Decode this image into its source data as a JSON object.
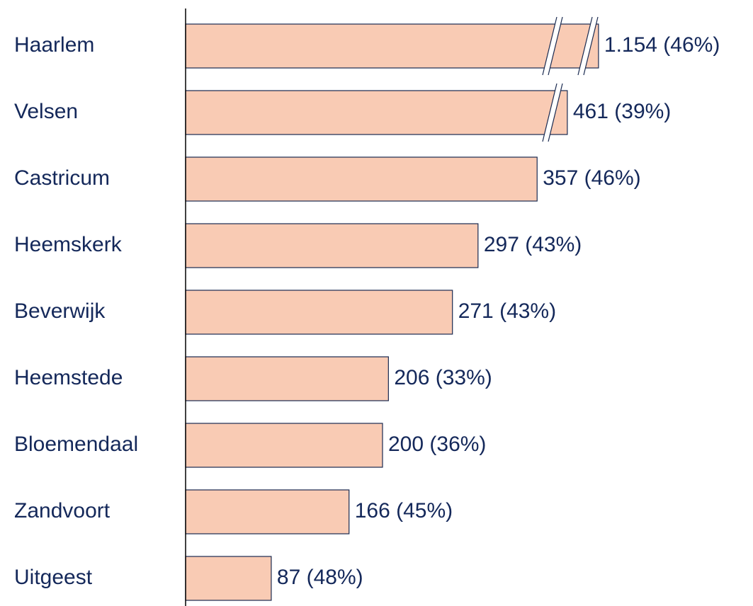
{
  "chart_data": {
    "type": "hbar",
    "categories": [
      "Haarlem",
      "Velsen",
      "Castricum",
      "Heemskerk",
      "Beverwijk",
      "Heemstede",
      "Bloemendaal",
      "Zandvoort",
      "Uitgeest"
    ],
    "values": [
      1154,
      461,
      357,
      297,
      271,
      206,
      200,
      166,
      87
    ],
    "value_labels": [
      "1.154 (46%)",
      "461 (39%)",
      "357 (46%)",
      "297 (43%)",
      "271 (43%)",
      "206 (33%)",
      "200 (36%)",
      "166 (45%)",
      "87 (48%)"
    ],
    "color": "#f9cbb4"
  }
}
